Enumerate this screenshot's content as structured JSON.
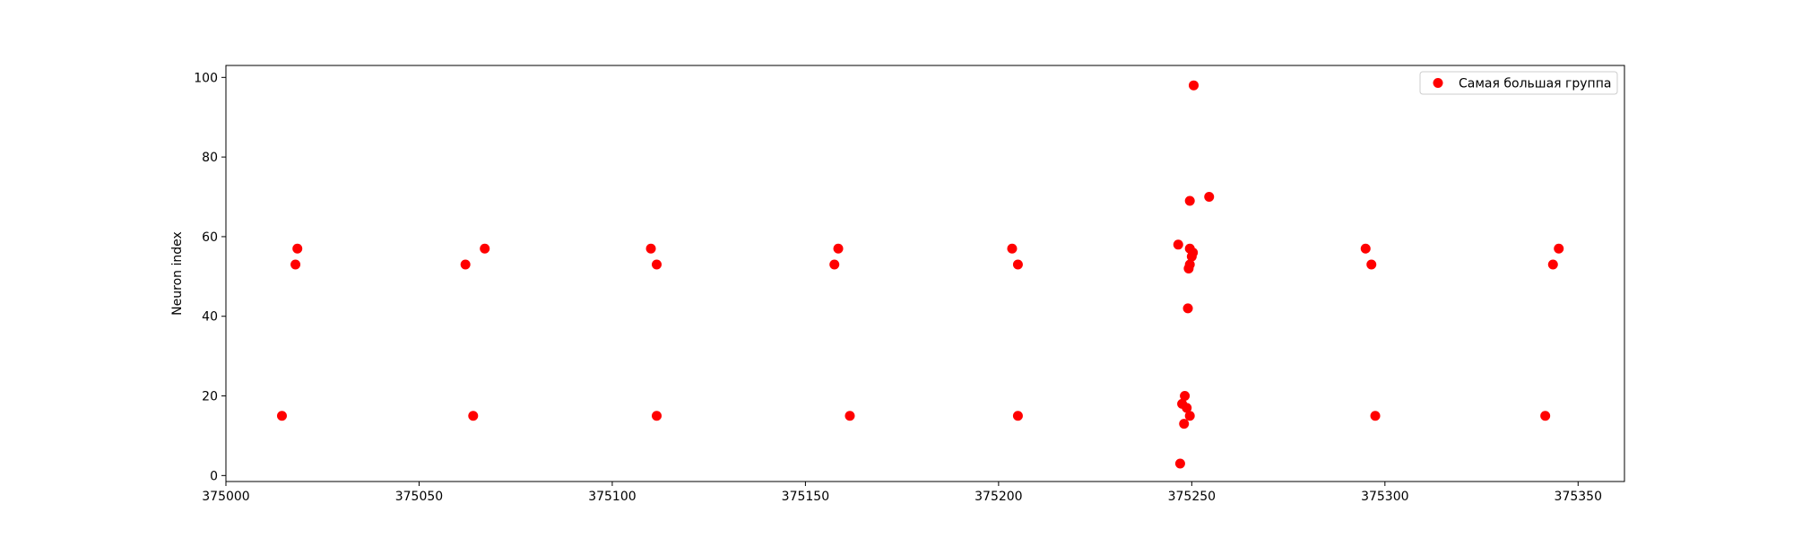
{
  "chart_data": {
    "type": "scatter",
    "title": "",
    "xlabel": "",
    "ylabel": "Neuron index",
    "xlim": [
      375000,
      375362
    ],
    "ylim": [
      -1.5,
      103
    ],
    "xticks": [
      375000,
      375050,
      375100,
      375150,
      375200,
      375250,
      375300,
      375350
    ],
    "yticks": [
      0,
      20,
      40,
      60,
      80,
      100
    ],
    "grid": false,
    "legend_position": "top-right",
    "series": [
      {
        "name": "Самая большая группа",
        "color": "#ff0000",
        "points": [
          [
            375014.5,
            15
          ],
          [
            375018,
            53
          ],
          [
            375018.5,
            57
          ],
          [
            375062,
            53
          ],
          [
            375064,
            15
          ],
          [
            375067,
            57
          ],
          [
            375110,
            57
          ],
          [
            375111.5,
            53
          ],
          [
            375111.5,
            15
          ],
          [
            375157.5,
            53
          ],
          [
            375158.5,
            57
          ],
          [
            375161.5,
            15
          ],
          [
            375203.5,
            57
          ],
          [
            375205,
            53
          ],
          [
            375205,
            15
          ],
          [
            375246.5,
            58
          ],
          [
            375247,
            3
          ],
          [
            375247.5,
            18
          ],
          [
            375248,
            13
          ],
          [
            375248.2,
            20
          ],
          [
            375248.7,
            17
          ],
          [
            375249,
            42
          ],
          [
            375249.2,
            52
          ],
          [
            375249.5,
            15
          ],
          [
            375249.5,
            53
          ],
          [
            375249.5,
            57
          ],
          [
            375249.5,
            69
          ],
          [
            375250,
            55
          ],
          [
            375250.3,
            56
          ],
          [
            375250.5,
            98
          ],
          [
            375254.5,
            70
          ],
          [
            375295,
            57
          ],
          [
            375296.5,
            53
          ],
          [
            375297.5,
            15
          ],
          [
            375341.5,
            15
          ],
          [
            375343.5,
            53
          ],
          [
            375345,
            57
          ]
        ]
      }
    ]
  }
}
